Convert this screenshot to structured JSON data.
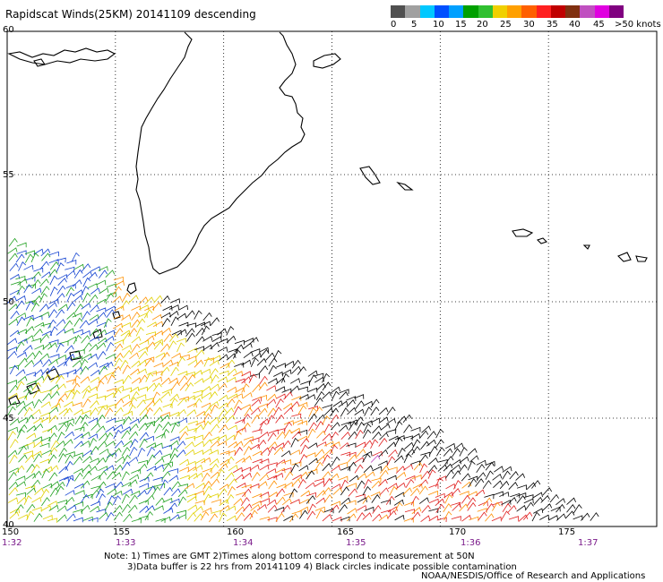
{
  "title": "Rapidscat Winds(25KM) 20141109 descending",
  "legend": {
    "labels": [
      "0",
      "5",
      "10",
      "15",
      "20",
      "25",
      "30",
      "35",
      "40",
      "45",
      ">50 knots"
    ],
    "colors": [
      "#505050",
      "#a0a0a0",
      "#00c8ff",
      "#0050ff",
      "#00a0ff",
      "#00a000",
      "#30c030",
      "#f0d000",
      "#ffa000",
      "#ff6000",
      "#ff2020",
      "#c00000",
      "#803010",
      "#c050c0",
      "#e000e0",
      "#800080"
    ]
  },
  "axes": {
    "lat_labels": [
      "60",
      "55",
      "50",
      "45",
      "40"
    ],
    "lon_labels": [
      "150",
      "155",
      "160",
      "165",
      "170",
      "175"
    ],
    "time_labels": [
      "1:32",
      "1:33",
      "1:34",
      "1:35",
      "1:36",
      "1:37"
    ]
  },
  "map": {
    "lon_range": [
      150,
      180
    ],
    "lat_range": [
      40,
      60
    ],
    "colors": {
      "black": "#000000",
      "red": "#e02020",
      "orange": "#ff9000",
      "yellow": "#e0d000",
      "green": "#20a020",
      "blue": "#1040d0",
      "purple": "#c040c0"
    }
  },
  "notes": {
    "line1": "Note: 1) Times are GMT 2)Times along bottom correspond to measurement at 50N",
    "line2": "3)Data buffer is 22 hrs from 20141109 4) Black circles indicate possible contamination",
    "credit": "NOAA/NESDIS/Office of Research and Applications"
  }
}
